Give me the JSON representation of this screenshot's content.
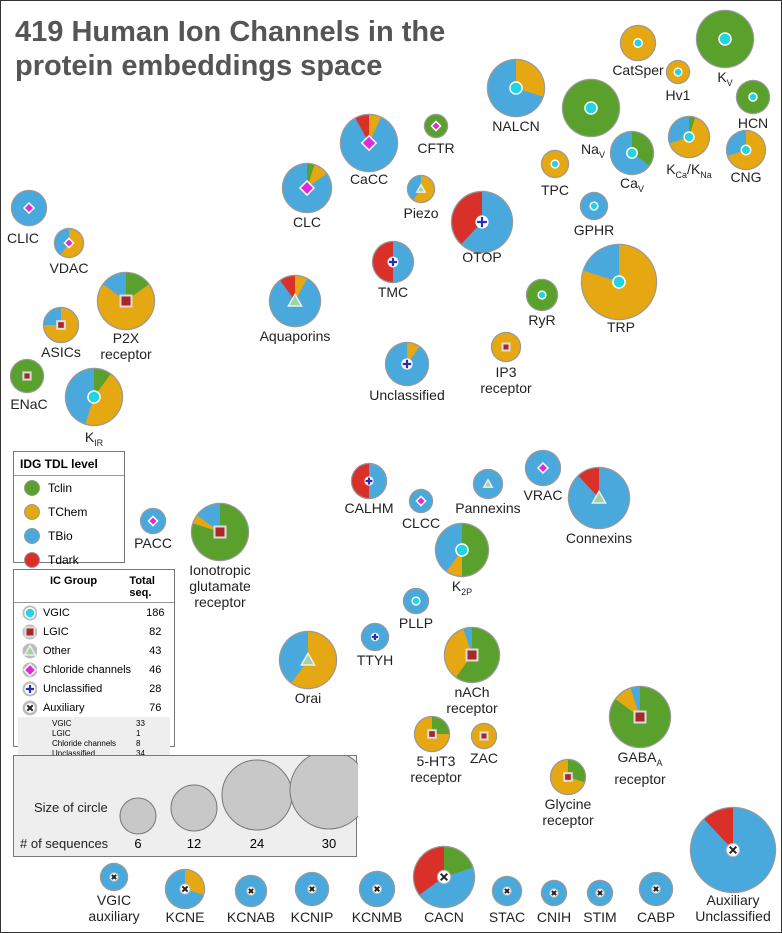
{
  "title": "419 Human Ion Channels in the protein embeddings space",
  "colors": {
    "Tclin": "#5aa02c",
    "TChem": "#e5a712",
    "TBio": "#4aa9dc",
    "Tdark": "#d9312a"
  },
  "tdl_legend": {
    "title": "IDG TDL level",
    "items": [
      {
        "label": "Tclin",
        "color": "#5aa02c"
      },
      {
        "label": "TChem",
        "color": "#e5a712"
      },
      {
        "label": "TBio",
        "color": "#4aa9dc"
      },
      {
        "label": "Tdark",
        "color": "#d9312a"
      }
    ]
  },
  "ic_legend": {
    "header_group": "IC Group",
    "header_total": "Total seq.",
    "rows": [
      {
        "symbol": "VGIC",
        "label": "VGIC",
        "total": "186"
      },
      {
        "symbol": "LGIC",
        "label": "LGIC",
        "total": "82"
      },
      {
        "symbol": "Other",
        "label": "Other",
        "total": "43"
      },
      {
        "symbol": "Chloride",
        "label": "Chloride channels",
        "total": "46"
      },
      {
        "symbol": "Unclassified",
        "label": "Unclassified",
        "total": "28"
      },
      {
        "symbol": "Auxiliary",
        "label": "Auxiliary",
        "total": "76"
      }
    ],
    "aux_breakdown": [
      {
        "label": "VGIC",
        "total": "33"
      },
      {
        "label": "LGIC",
        "total": "1"
      },
      {
        "label": "Chloride channels",
        "total": "8"
      },
      {
        "label": "Unclassified",
        "total": "34"
      }
    ]
  },
  "size_legend": {
    "title": "Size of circle",
    "row_label": "# of sequences",
    "sizes": [
      6,
      12,
      24,
      30
    ]
  },
  "chart_data": {
    "type": "pie",
    "title": "419 Human Ion Channels in the protein embeddings space",
    "description_of_encoding": "Each pie = one ion channel family; size = number of sequences; slices = TDL level fractions (Tclin, TChem, TBio, Tdark); center symbol = IC group",
    "families": [
      {
        "label": "CLIC",
        "group": "Chloride",
        "slices": [
          0,
          0,
          1,
          0
        ]
      },
      {
        "label": "VDAC",
        "group": "Chloride",
        "slices": [
          0,
          0.6,
          0.4,
          0
        ]
      },
      {
        "label": "ASICs",
        "group": "LGIC",
        "slices": [
          0,
          0.75,
          0.25,
          0
        ]
      },
      {
        "label": "P2X receptor",
        "group": "LGIC",
        "slices": [
          0.15,
          0.7,
          0.15,
          0
        ]
      },
      {
        "label": "ENaC",
        "group": "LGIC",
        "slices": [
          1,
          0,
          0,
          0
        ]
      },
      {
        "label": "KIR",
        "group": "VGIC",
        "slices": [
          0.1,
          0.45,
          0.45,
          0
        ]
      },
      {
        "label": "CLC",
        "group": "Chloride",
        "slices": [
          0.05,
          0.1,
          0.85,
          0
        ]
      },
      {
        "label": "CaCC",
        "group": "Chloride",
        "slices": [
          0,
          0.07,
          0.85,
          0.08
        ]
      },
      {
        "label": "CFTR",
        "group": "Chloride",
        "slices": [
          1,
          0,
          0,
          0
        ]
      },
      {
        "label": "Piezo",
        "group": "Other",
        "slices": [
          0,
          0.6,
          0.4,
          0
        ]
      },
      {
        "label": "Aquaporins",
        "group": "Other",
        "slices": [
          0,
          0.08,
          0.82,
          0.1
        ]
      },
      {
        "label": "TMC",
        "group": "Unclassified",
        "slices": [
          0,
          0,
          0.5,
          0.5
        ]
      },
      {
        "label": "OTOP",
        "group": "Unclassified",
        "slices": [
          0,
          0,
          0.62,
          0.38
        ]
      },
      {
        "label": "Unclassified",
        "group": "Unclassified",
        "slices": [
          0,
          0.1,
          0.9,
          0
        ]
      },
      {
        "label": "NALCN",
        "group": "VGIC",
        "slices": [
          0,
          0.3,
          0.7,
          0
        ]
      },
      {
        "label": "NaV",
        "group": "VGIC",
        "slices": [
          1,
          0,
          0,
          0
        ]
      },
      {
        "label": "CatSper",
        "group": "VGIC",
        "slices": [
          0,
          1,
          0,
          0
        ]
      },
      {
        "label": "Hv1",
        "group": "VGIC",
        "slices": [
          0,
          1,
          0,
          0
        ]
      },
      {
        "label": "KV",
        "group": "VGIC",
        "slices": [
          1,
          0,
          0,
          0
        ]
      },
      {
        "label": "HCN",
        "group": "VGIC",
        "slices": [
          1,
          0,
          0,
          0
        ]
      },
      {
        "label": "TPC",
        "group": "VGIC",
        "slices": [
          0,
          1,
          0,
          0
        ]
      },
      {
        "label": "CaV",
        "group": "VGIC",
        "slices": [
          0.35,
          0,
          0.65,
          0
        ]
      },
      {
        "label": "KCa/KNa",
        "group": "VGIC",
        "slices": [
          0.05,
          0.65,
          0.3,
          0
        ]
      },
      {
        "label": "CNG",
        "group": "VGIC",
        "slices": [
          0,
          0.7,
          0.3,
          0
        ]
      },
      {
        "label": "GPHR",
        "group": "VGIC",
        "slices": [
          0,
          0,
          1,
          0
        ]
      },
      {
        "label": "TRP",
        "group": "VGIC",
        "slices": [
          0,
          0.8,
          0.2,
          0
        ]
      },
      {
        "label": "RyR",
        "group": "VGIC",
        "slices": [
          1,
          0,
          0,
          0
        ]
      },
      {
        "label": "IP3 receptor",
        "group": "LGIC",
        "slices": [
          0,
          1,
          0,
          0
        ]
      },
      {
        "label": "CALHM",
        "group": "Unclassified",
        "slices": [
          0,
          0,
          0.5,
          0.5
        ]
      },
      {
        "label": "CLCC",
        "group": "Chloride",
        "slices": [
          0,
          0,
          1,
          0
        ]
      },
      {
        "label": "Pannexins",
        "group": "Other",
        "slices": [
          0,
          0,
          1,
          0
        ]
      },
      {
        "label": "VRAC",
        "group": "Chloride",
        "slices": [
          0,
          0,
          1,
          0
        ]
      },
      {
        "label": "Connexins",
        "group": "Other",
        "slices": [
          0,
          0,
          0.88,
          0.12
        ]
      },
      {
        "label": "K2P",
        "group": "VGIC",
        "slices": [
          0.5,
          0.1,
          0.4,
          0
        ]
      },
      {
        "label": "PACC",
        "group": "Chloride",
        "slices": [
          0,
          0,
          1,
          0
        ]
      },
      {
        "label": "Ionotropic glutamate receptor",
        "group": "LGIC",
        "slices": [
          0.8,
          0.05,
          0.15,
          0
        ]
      },
      {
        "label": "PLLP",
        "group": "VGIC",
        "slices": [
          0,
          0,
          1,
          0
        ]
      },
      {
        "label": "TTYH",
        "group": "Unclassified",
        "slices": [
          0,
          0,
          1,
          0
        ]
      },
      {
        "label": "Orai",
        "group": "Other",
        "slices": [
          0,
          0.6,
          0.4,
          0
        ]
      },
      {
        "label": "nACh receptor",
        "group": "LGIC",
        "slices": [
          0.6,
          0.35,
          0.05,
          0
        ]
      },
      {
        "label": "5-HT3 receptor",
        "group": "LGIC",
        "slices": [
          0.25,
          0.75,
          0,
          0
        ]
      },
      {
        "label": "ZAC",
        "group": "LGIC",
        "slices": [
          0,
          1,
          0,
          0
        ]
      },
      {
        "label": "GABAA receptor",
        "group": "LGIC",
        "slices": [
          0.85,
          0.1,
          0.05,
          0
        ]
      },
      {
        "label": "Glycine receptor",
        "group": "LGIC",
        "slices": [
          0.3,
          0.7,
          0,
          0
        ]
      },
      {
        "label": "VGIC auxiliary",
        "group": "Auxiliary",
        "slices": [
          0,
          0,
          1,
          0
        ]
      },
      {
        "label": "KCNE",
        "group": "Auxiliary",
        "slices": [
          0,
          0.3,
          0.7,
          0
        ]
      },
      {
        "label": "KCNAB",
        "group": "Auxiliary",
        "slices": [
          0,
          0,
          1,
          0
        ]
      },
      {
        "label": "KCNIP",
        "group": "Auxiliary",
        "slices": [
          0,
          0,
          1,
          0
        ]
      },
      {
        "label": "KCNMB",
        "group": "Auxiliary",
        "slices": [
          0,
          0,
          1,
          0
        ]
      },
      {
        "label": "CACN",
        "group": "Auxiliary",
        "slices": [
          0.2,
          0,
          0.45,
          0.35
        ]
      },
      {
        "label": "STAC",
        "group": "Auxiliary",
        "slices": [
          0,
          0,
          1,
          0
        ]
      },
      {
        "label": "CNIH",
        "group": "Auxiliary",
        "slices": [
          0,
          0,
          1,
          0
        ]
      },
      {
        "label": "STIM",
        "group": "Auxiliary",
        "slices": [
          0,
          0,
          1,
          0
        ]
      },
      {
        "label": "CABP",
        "group": "Auxiliary",
        "slices": [
          0,
          0,
          1,
          0
        ]
      },
      {
        "label": "Auxiliary Unclassified",
        "group": "Auxiliary",
        "slices": [
          0,
          0,
          0.88,
          0.12
        ]
      }
    ]
  }
}
